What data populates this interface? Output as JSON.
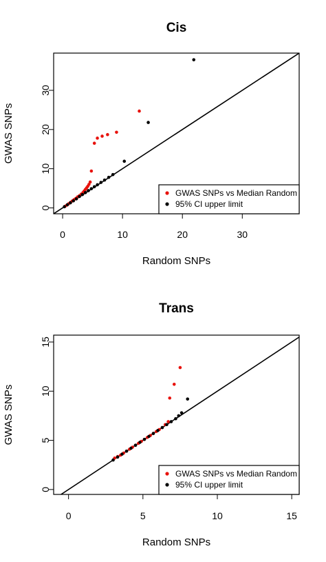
{
  "chart_data": [
    {
      "type": "scatter",
      "title": "Cis",
      "xlabel": "Random SNPs",
      "ylabel": "GWAS SNPs",
      "xlim": [
        -1.5,
        39.5
      ],
      "ylim": [
        -1.5,
        39.5
      ],
      "xticks": [
        0,
        10,
        20,
        30
      ],
      "yticks": [
        0,
        10,
        20,
        30
      ],
      "xtick_labels": [
        "0",
        "10",
        "20",
        "30"
      ],
      "ytick_labels": [
        "0",
        "10",
        "20",
        "30"
      ],
      "reference_line": "y = x",
      "legend_placement": "bottom-right",
      "series": [
        {
          "name": "GWAS SNPs vs Median Random",
          "color": "#e8120c",
          "points": [
            [
              0.4,
              0.4
            ],
            [
              0.7,
              0.7
            ],
            [
              1.0,
              1.05
            ],
            [
              1.3,
              1.4
            ],
            [
              1.6,
              1.75
            ],
            [
              1.9,
              2.1
            ],
            [
              2.2,
              2.4
            ],
            [
              2.5,
              2.8
            ],
            [
              2.8,
              3.1
            ],
            [
              3.1,
              3.5
            ],
            [
              3.4,
              3.9
            ],
            [
              3.6,
              4.3
            ],
            [
              3.8,
              4.7
            ],
            [
              4.0,
              5.1
            ],
            [
              4.2,
              5.5
            ],
            [
              4.4,
              6.0
            ],
            [
              4.6,
              6.6
            ],
            [
              4.8,
              9.4
            ],
            [
              5.3,
              16.5
            ],
            [
              5.8,
              17.8
            ],
            [
              6.6,
              18.3
            ],
            [
              7.5,
              18.7
            ],
            [
              9.0,
              19.3
            ],
            [
              12.8,
              24.7
            ]
          ]
        },
        {
          "name": "95% CI upper limit",
          "color": "#000000",
          "points": [
            [
              0.3,
              0.3
            ],
            [
              0.8,
              0.8
            ],
            [
              1.3,
              1.3
            ],
            [
              1.8,
              1.8
            ],
            [
              2.3,
              2.3
            ],
            [
              2.8,
              2.9
            ],
            [
              3.3,
              3.4
            ],
            [
              3.8,
              3.9
            ],
            [
              4.3,
              4.4
            ],
            [
              4.8,
              4.9
            ],
            [
              5.3,
              5.4
            ],
            [
              5.8,
              5.9
            ],
            [
              6.4,
              6.5
            ],
            [
              7.0,
              7.1
            ],
            [
              7.7,
              7.8
            ],
            [
              8.4,
              8.5
            ],
            [
              10.3,
              11.9
            ],
            [
              14.3,
              21.8
            ],
            [
              21.9,
              37.8
            ]
          ]
        }
      ]
    },
    {
      "type": "scatter",
      "title": "Trans",
      "xlabel": "Random SNPs",
      "ylabel": "GWAS SNPs",
      "xlim": [
        -1.0,
        15.5
      ],
      "ylim": [
        -0.5,
        15.7
      ],
      "xticks": [
        0,
        5,
        10,
        15
      ],
      "yticks": [
        0,
        5,
        10,
        15
      ],
      "xtick_labels": [
        "0",
        "5",
        "10",
        "15"
      ],
      "ytick_labels": [
        "0",
        "5",
        "10",
        "15"
      ],
      "reference_line": "y = x",
      "legend_placement": "bottom-right",
      "series": [
        {
          "name": "GWAS SNPs vs Median Random",
          "color": "#e8120c",
          "points": [
            [
              3.1,
              3.2
            ],
            [
              3.3,
              3.35
            ],
            [
              3.5,
              3.5
            ],
            [
              3.7,
              3.7
            ],
            [
              3.9,
              3.9
            ],
            [
              4.1,
              4.1
            ],
            [
              4.3,
              4.3
            ],
            [
              4.5,
              4.5
            ],
            [
              4.7,
              4.7
            ],
            [
              4.9,
              4.9
            ],
            [
              5.1,
              5.1
            ],
            [
              5.3,
              5.3
            ],
            [
              5.5,
              5.5
            ],
            [
              5.7,
              5.7
            ],
            [
              5.9,
              5.9
            ],
            [
              6.1,
              6.1
            ],
            [
              6.3,
              6.3
            ],
            [
              6.5,
              6.6
            ],
            [
              6.7,
              6.9
            ],
            [
              6.8,
              9.3
            ],
            [
              7.1,
              10.7
            ],
            [
              7.5,
              12.4
            ]
          ]
        },
        {
          "name": "95% CI upper limit",
          "color": "#000000",
          "points": [
            [
              3.0,
              3.0
            ],
            [
              3.3,
              3.3
            ],
            [
              3.6,
              3.6
            ],
            [
              3.9,
              3.9
            ],
            [
              4.2,
              4.2
            ],
            [
              4.5,
              4.5
            ],
            [
              4.8,
              4.8
            ],
            [
              5.1,
              5.1
            ],
            [
              5.4,
              5.4
            ],
            [
              5.7,
              5.7
            ],
            [
              6.0,
              6.0
            ],
            [
              6.3,
              6.3
            ],
            [
              6.6,
              6.6
            ],
            [
              6.9,
              6.9
            ],
            [
              7.2,
              7.2
            ],
            [
              7.4,
              7.5
            ],
            [
              7.6,
              7.8
            ],
            [
              8.0,
              9.2
            ]
          ]
        }
      ]
    }
  ]
}
